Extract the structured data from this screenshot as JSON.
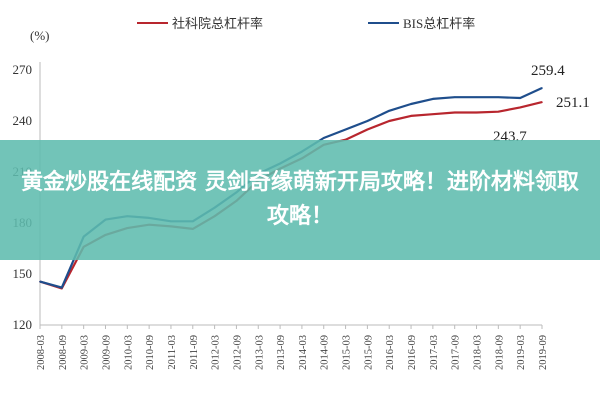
{
  "chart_data": {
    "type": "line",
    "ylabel": "(%)",
    "ylim": [
      120,
      270
    ],
    "yticks": [
      120,
      150,
      180,
      210,
      240,
      270
    ],
    "grid": false,
    "legend_position": "top",
    "x": [
      "2008-03",
      "2008-09",
      "2009-03",
      "2009-09",
      "2010-03",
      "2010-09",
      "2011-03",
      "2011-09",
      "2012-03",
      "2012-09",
      "2013-03",
      "2013-09",
      "2014-03",
      "2014-09",
      "2015-03",
      "2015-09",
      "2016-03",
      "2016-09",
      "2017-03",
      "2017-09",
      "2018-03",
      "2018-09",
      "2019-03",
      "2019-09"
    ],
    "series": [
      {
        "name": "社科院总杠杆率",
        "color": "#b8262e",
        "values": [
          145.5,
          141.5,
          166,
          173,
          177,
          179,
          178,
          176.5,
          184,
          193,
          205,
          212,
          218,
          226,
          229,
          235,
          240,
          243,
          244,
          245,
          245,
          245.5,
          248,
          251.1
        ]
      },
      {
        "name": "BIS总杠杆率",
        "color": "#1f4e8c",
        "values": [
          145.5,
          142,
          172,
          182,
          184,
          183,
          181,
          181,
          189,
          198,
          209,
          215,
          222,
          230,
          235,
          240,
          246,
          250,
          253,
          254,
          254,
          254,
          253.5,
          259.4
        ]
      }
    ],
    "annotations": [
      "259.4",
      "251.1",
      "243.7"
    ]
  },
  "overlay": {
    "text": "黄金炒股在线配资 灵剑奇缘萌新开局攻略！进阶材料领取攻略！",
    "color": "#5ebcae"
  }
}
